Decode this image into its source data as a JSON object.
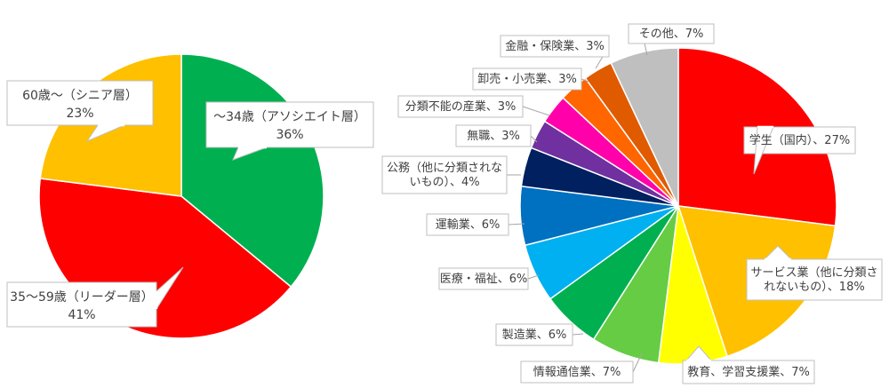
{
  "chart_data": [
    {
      "type": "pie",
      "start": "top",
      "direction": "clockwise",
      "slices": [
        {
          "label": "～34歳（アソシエイト層）",
          "value_text": "36%",
          "value": 36,
          "color": "#00b050"
        },
        {
          "label": "35～59歳（リーダー層）",
          "value_text": "41%",
          "value": 41,
          "color": "#ff0000"
        },
        {
          "label": "60歳～（シニア層）",
          "value_text": "23%",
          "value": 23,
          "color": "#ffc000"
        }
      ]
    },
    {
      "type": "pie",
      "start": "top",
      "direction": "clockwise",
      "slices": [
        {
          "label": "学生（国内）、27%",
          "value": 27,
          "color": "#ff0000"
        },
        {
          "label": "サービス業（他に分類されないもの）、18%",
          "value": 18,
          "color": "#ffc000"
        },
        {
          "label": "教育、学習支援業、7%",
          "value": 7,
          "color": "#ffff00"
        },
        {
          "label": "情報通信業、7%",
          "value": 7,
          "color": "#66cc44"
        },
        {
          "label": "製造業、6%",
          "value": 6,
          "color": "#00b050"
        },
        {
          "label": "医療・福祉、6%",
          "value": 6,
          "color": "#00b0f0"
        },
        {
          "label": "運輸業、6%",
          "value": 6,
          "color": "#0070c0"
        },
        {
          "label": "公務（他に分類されないもの）、4%",
          "value": 4,
          "color": "#002060"
        },
        {
          "label": "無職、3%",
          "value": 3,
          "color": "#7030a0"
        },
        {
          "label": "分類不能の産業、3%",
          "value": 3,
          "color": "#ff00aa"
        },
        {
          "label": "卸売・小売業、3%",
          "value": 3,
          "color": "#ff6600"
        },
        {
          "label": "金融・保険業、3%",
          "value": 3,
          "color": "#e05a00"
        },
        {
          "label": "その他、7%",
          "value": 7,
          "color": "#bfbfbf"
        }
      ]
    }
  ]
}
